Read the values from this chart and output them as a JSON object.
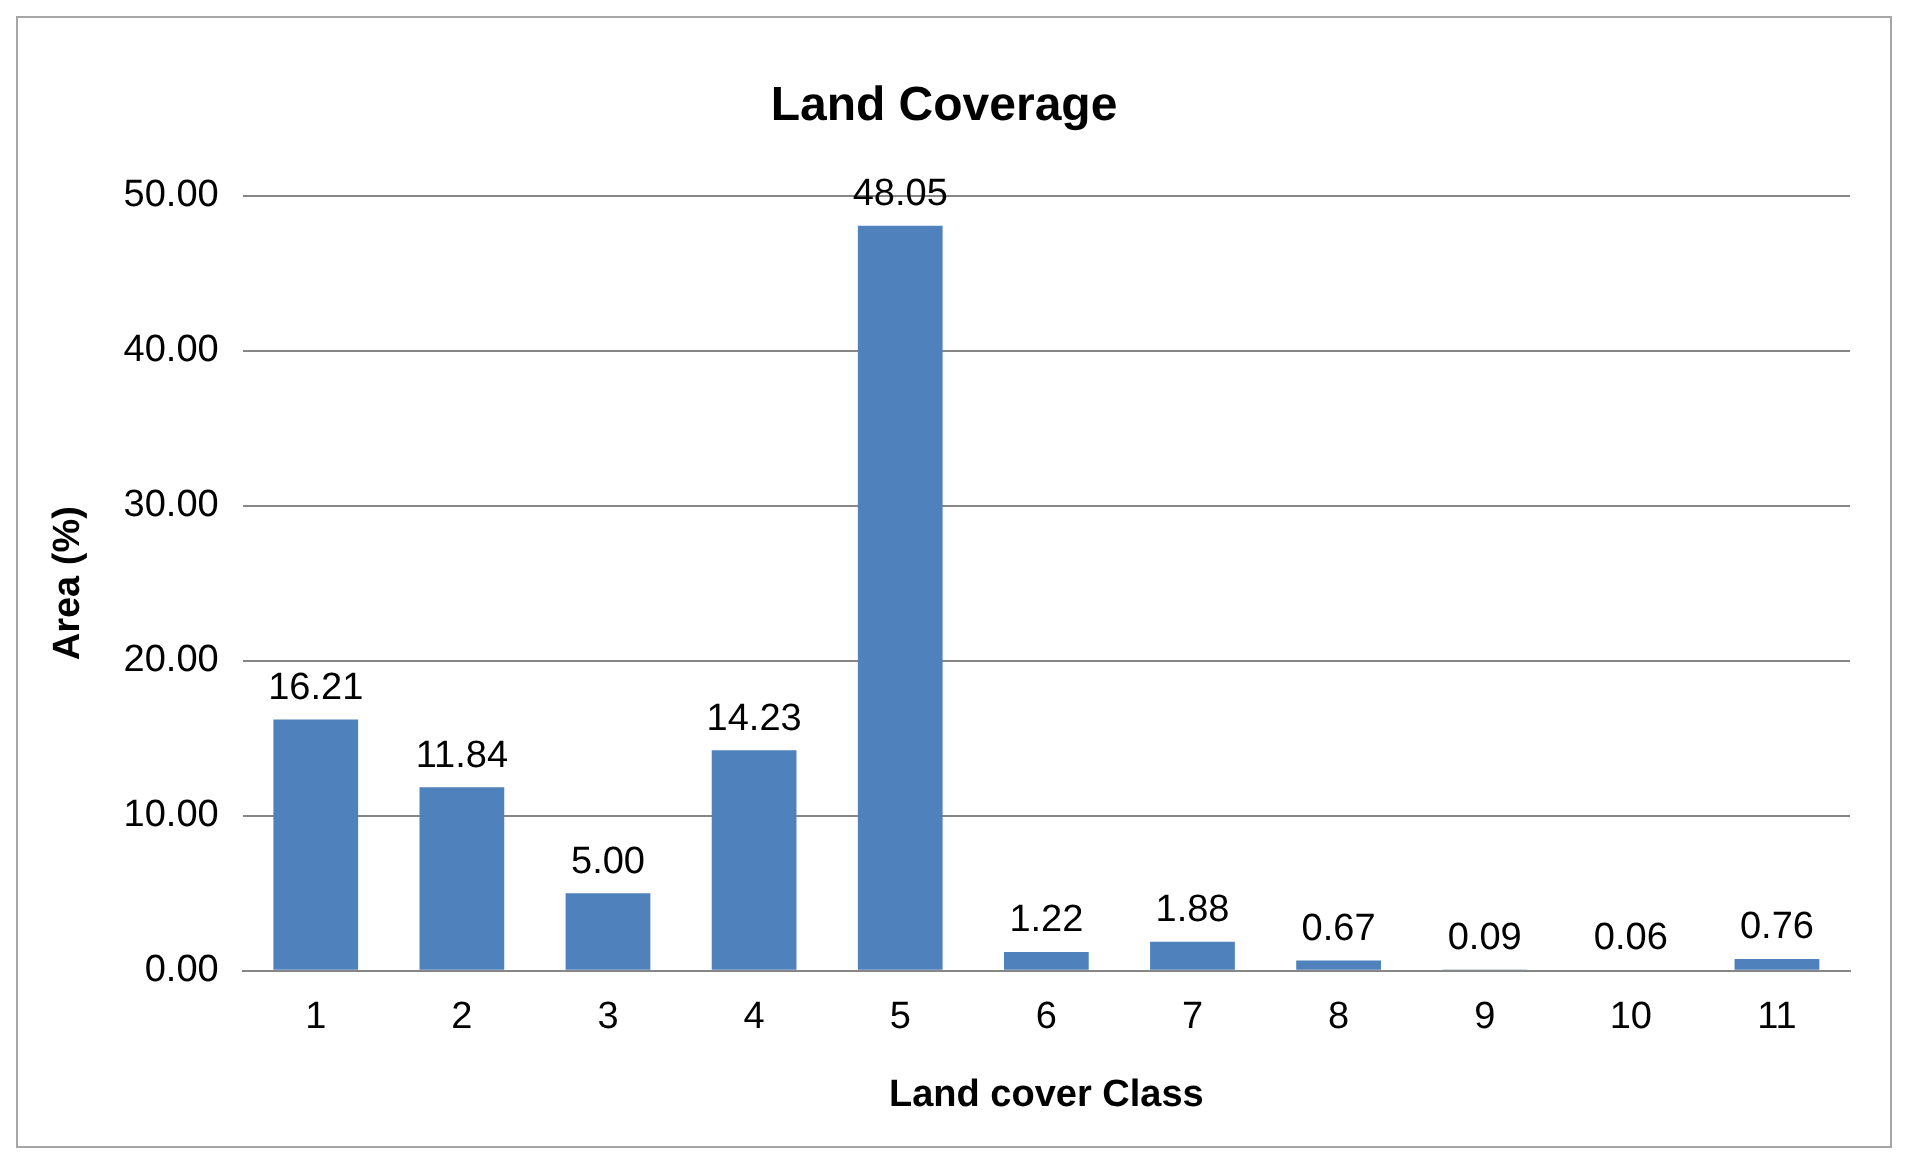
{
  "chart_data": {
    "type": "bar",
    "title": "Land Coverage",
    "xlabel": "Land cover Class",
    "ylabel": "Area (%)",
    "categories": [
      "1",
      "2",
      "3",
      "4",
      "5",
      "6",
      "7",
      "8",
      "9",
      "10",
      "11"
    ],
    "values": [
      16.21,
      11.84,
      5.0,
      14.23,
      48.05,
      1.22,
      1.88,
      0.67,
      0.09,
      0.06,
      0.76
    ],
    "value_labels": [
      "16.21",
      "11.84",
      "5.00",
      "14.23",
      "48.05",
      "1.22",
      "1.88",
      "0.67",
      "0.09",
      "0.06",
      "0.76"
    ],
    "color": "#4f81bd",
    "ylim": [
      0,
      50
    ],
    "yticks": [
      {
        "value": 0,
        "label": "0.00"
      },
      {
        "value": 10,
        "label": "10.00"
      },
      {
        "value": 20,
        "label": "20.00"
      },
      {
        "value": 30,
        "label": "30.00"
      },
      {
        "value": 40,
        "label": "40.00"
      },
      {
        "value": 50,
        "label": "50.00"
      }
    ],
    "grid": "y",
    "legend": false
  }
}
